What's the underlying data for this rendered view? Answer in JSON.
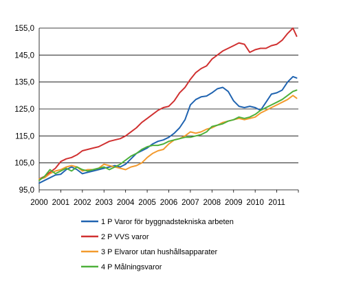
{
  "chart_data": {
    "type": "line",
    "title": "",
    "xlabel": "",
    "ylabel": "",
    "ylim": [
      95,
      155
    ],
    "xlim": [
      2000,
      2012
    ],
    "x_ticks": [
      "2000",
      "2001",
      "2002",
      "2003",
      "2004",
      "2005",
      "2006",
      "2007",
      "2008",
      "2009",
      "2010",
      "2011"
    ],
    "y_ticks": [
      "95,0",
      "105,0",
      "115,0",
      "125,0",
      "135,0",
      "145,0",
      "155,0"
    ],
    "grid": "horizontal",
    "legend_position": "bottom",
    "series": [
      {
        "name": "1 P Varor för byggnadstekniska arbeten",
        "color": "#1f63b0",
        "x": [
          2000.0,
          2000.25,
          2000.5,
          2000.75,
          2001.0,
          2001.25,
          2001.5,
          2001.75,
          2002.0,
          2002.25,
          2002.5,
          2002.75,
          2003.0,
          2003.25,
          2003.5,
          2003.75,
          2004.0,
          2004.25,
          2004.5,
          2004.75,
          2005.0,
          2005.25,
          2005.5,
          2005.75,
          2006.0,
          2006.25,
          2006.5,
          2006.75,
          2007.0,
          2007.25,
          2007.5,
          2007.75,
          2008.0,
          2008.25,
          2008.5,
          2008.75,
          2009.0,
          2009.25,
          2009.5,
          2009.75,
          2010.0,
          2010.25,
          2010.5,
          2010.75,
          2011.0,
          2011.25,
          2011.5,
          2011.75,
          2011.92
        ],
        "values": [
          97.5,
          98.5,
          99.5,
          100.5,
          100.8,
          102.5,
          103.5,
          102.5,
          101.0,
          101.5,
          102.0,
          102.5,
          103.0,
          103.5,
          104.0,
          103.5,
          104.5,
          106.5,
          108.5,
          109.5,
          110.5,
          112.0,
          113.0,
          113.5,
          114.5,
          116.0,
          118.0,
          121.0,
          126.5,
          128.5,
          129.5,
          129.8,
          131.0,
          132.5,
          133.0,
          131.5,
          128.0,
          126.0,
          125.5,
          126.0,
          125.5,
          124.5,
          127.5,
          130.5,
          131.0,
          132.0,
          135.0,
          137.0,
          136.5
        ]
      },
      {
        "name": "2 P VVS varor",
        "color": "#d03030",
        "x": [
          2000.0,
          2000.25,
          2000.5,
          2000.75,
          2001.0,
          2001.25,
          2001.5,
          2001.75,
          2002.0,
          2002.25,
          2002.5,
          2002.75,
          2003.0,
          2003.25,
          2003.5,
          2003.75,
          2004.0,
          2004.25,
          2004.5,
          2004.75,
          2005.0,
          2005.25,
          2005.5,
          2005.75,
          2006.0,
          2006.25,
          2006.5,
          2006.75,
          2007.0,
          2007.25,
          2007.5,
          2007.75,
          2008.0,
          2008.25,
          2008.5,
          2008.75,
          2009.0,
          2009.25,
          2009.5,
          2009.75,
          2010.0,
          2010.25,
          2010.5,
          2010.75,
          2011.0,
          2011.25,
          2011.5,
          2011.75,
          2011.92
        ],
        "values": [
          99.0,
          100.0,
          101.5,
          103.0,
          105.5,
          106.5,
          107.0,
          108.0,
          109.5,
          110.0,
          110.5,
          111.0,
          112.0,
          113.0,
          113.5,
          114.0,
          115.0,
          116.5,
          118.0,
          120.0,
          121.5,
          123.0,
          124.5,
          125.5,
          126.0,
          128.0,
          131.0,
          133.0,
          136.0,
          138.5,
          140.0,
          141.0,
          143.5,
          145.0,
          146.5,
          147.5,
          148.5,
          149.5,
          149.0,
          146.0,
          147.0,
          147.5,
          147.5,
          148.5,
          149.0,
          150.5,
          153.0,
          155.0,
          152.0
        ]
      },
      {
        "name": "3 P Elvaror utan hushållsapparater",
        "color": "#f39a2d",
        "x": [
          2000.0,
          2000.25,
          2000.5,
          2000.75,
          2001.0,
          2001.25,
          2001.5,
          2001.75,
          2002.0,
          2002.25,
          2002.5,
          2002.75,
          2003.0,
          2003.25,
          2003.5,
          2003.75,
          2004.0,
          2004.25,
          2004.5,
          2004.75,
          2005.0,
          2005.25,
          2005.5,
          2005.75,
          2006.0,
          2006.25,
          2006.5,
          2006.75,
          2007.0,
          2007.25,
          2007.5,
          2007.75,
          2008.0,
          2008.25,
          2008.5,
          2008.75,
          2009.0,
          2009.25,
          2009.5,
          2009.75,
          2010.0,
          2010.25,
          2010.5,
          2010.75,
          2011.0,
          2011.25,
          2011.5,
          2011.75,
          2011.92
        ],
        "values": [
          99.0,
          99.5,
          101.0,
          102.0,
          102.5,
          103.5,
          104.0,
          103.5,
          102.0,
          102.5,
          102.5,
          103.0,
          104.5,
          104.0,
          103.5,
          103.0,
          102.5,
          103.5,
          104.0,
          105.0,
          107.0,
          108.5,
          109.5,
          110.0,
          112.0,
          113.5,
          114.0,
          115.0,
          116.5,
          116.0,
          116.5,
          117.5,
          118.0,
          119.0,
          120.0,
          120.5,
          121.0,
          121.5,
          121.0,
          121.5,
          122.0,
          123.5,
          124.5,
          125.5,
          126.5,
          127.5,
          128.5,
          130.0,
          129.0
        ]
      },
      {
        "name": "4 P Målningsvaror",
        "color": "#4db03a",
        "x": [
          2000.0,
          2000.25,
          2000.5,
          2000.75,
          2001.0,
          2001.25,
          2001.5,
          2001.75,
          2002.0,
          2002.25,
          2002.5,
          2002.75,
          2003.0,
          2003.25,
          2003.5,
          2003.75,
          2004.0,
          2004.25,
          2004.5,
          2004.75,
          2005.0,
          2005.25,
          2005.5,
          2005.75,
          2006.0,
          2006.25,
          2006.5,
          2006.75,
          2007.0,
          2007.25,
          2007.5,
          2007.75,
          2008.0,
          2008.25,
          2008.5,
          2008.75,
          2009.0,
          2009.25,
          2009.5,
          2009.75,
          2010.0,
          2010.25,
          2010.5,
          2010.75,
          2011.0,
          2011.25,
          2011.5,
          2011.75,
          2011.92
        ],
        "values": [
          98.5,
          100.0,
          102.5,
          101.0,
          102.0,
          103.0,
          102.0,
          103.5,
          102.5,
          102.0,
          102.5,
          103.0,
          103.5,
          102.5,
          103.5,
          104.5,
          106.0,
          107.5,
          108.5,
          110.0,
          111.0,
          111.5,
          111.5,
          112.0,
          113.0,
          113.5,
          114.0,
          114.5,
          114.5,
          115.0,
          115.5,
          116.5,
          118.5,
          119.0,
          119.5,
          120.5,
          121.0,
          122.0,
          121.5,
          122.0,
          123.0,
          124.5,
          125.5,
          126.5,
          127.5,
          128.5,
          130.0,
          131.5,
          132.0
        ]
      }
    ]
  }
}
